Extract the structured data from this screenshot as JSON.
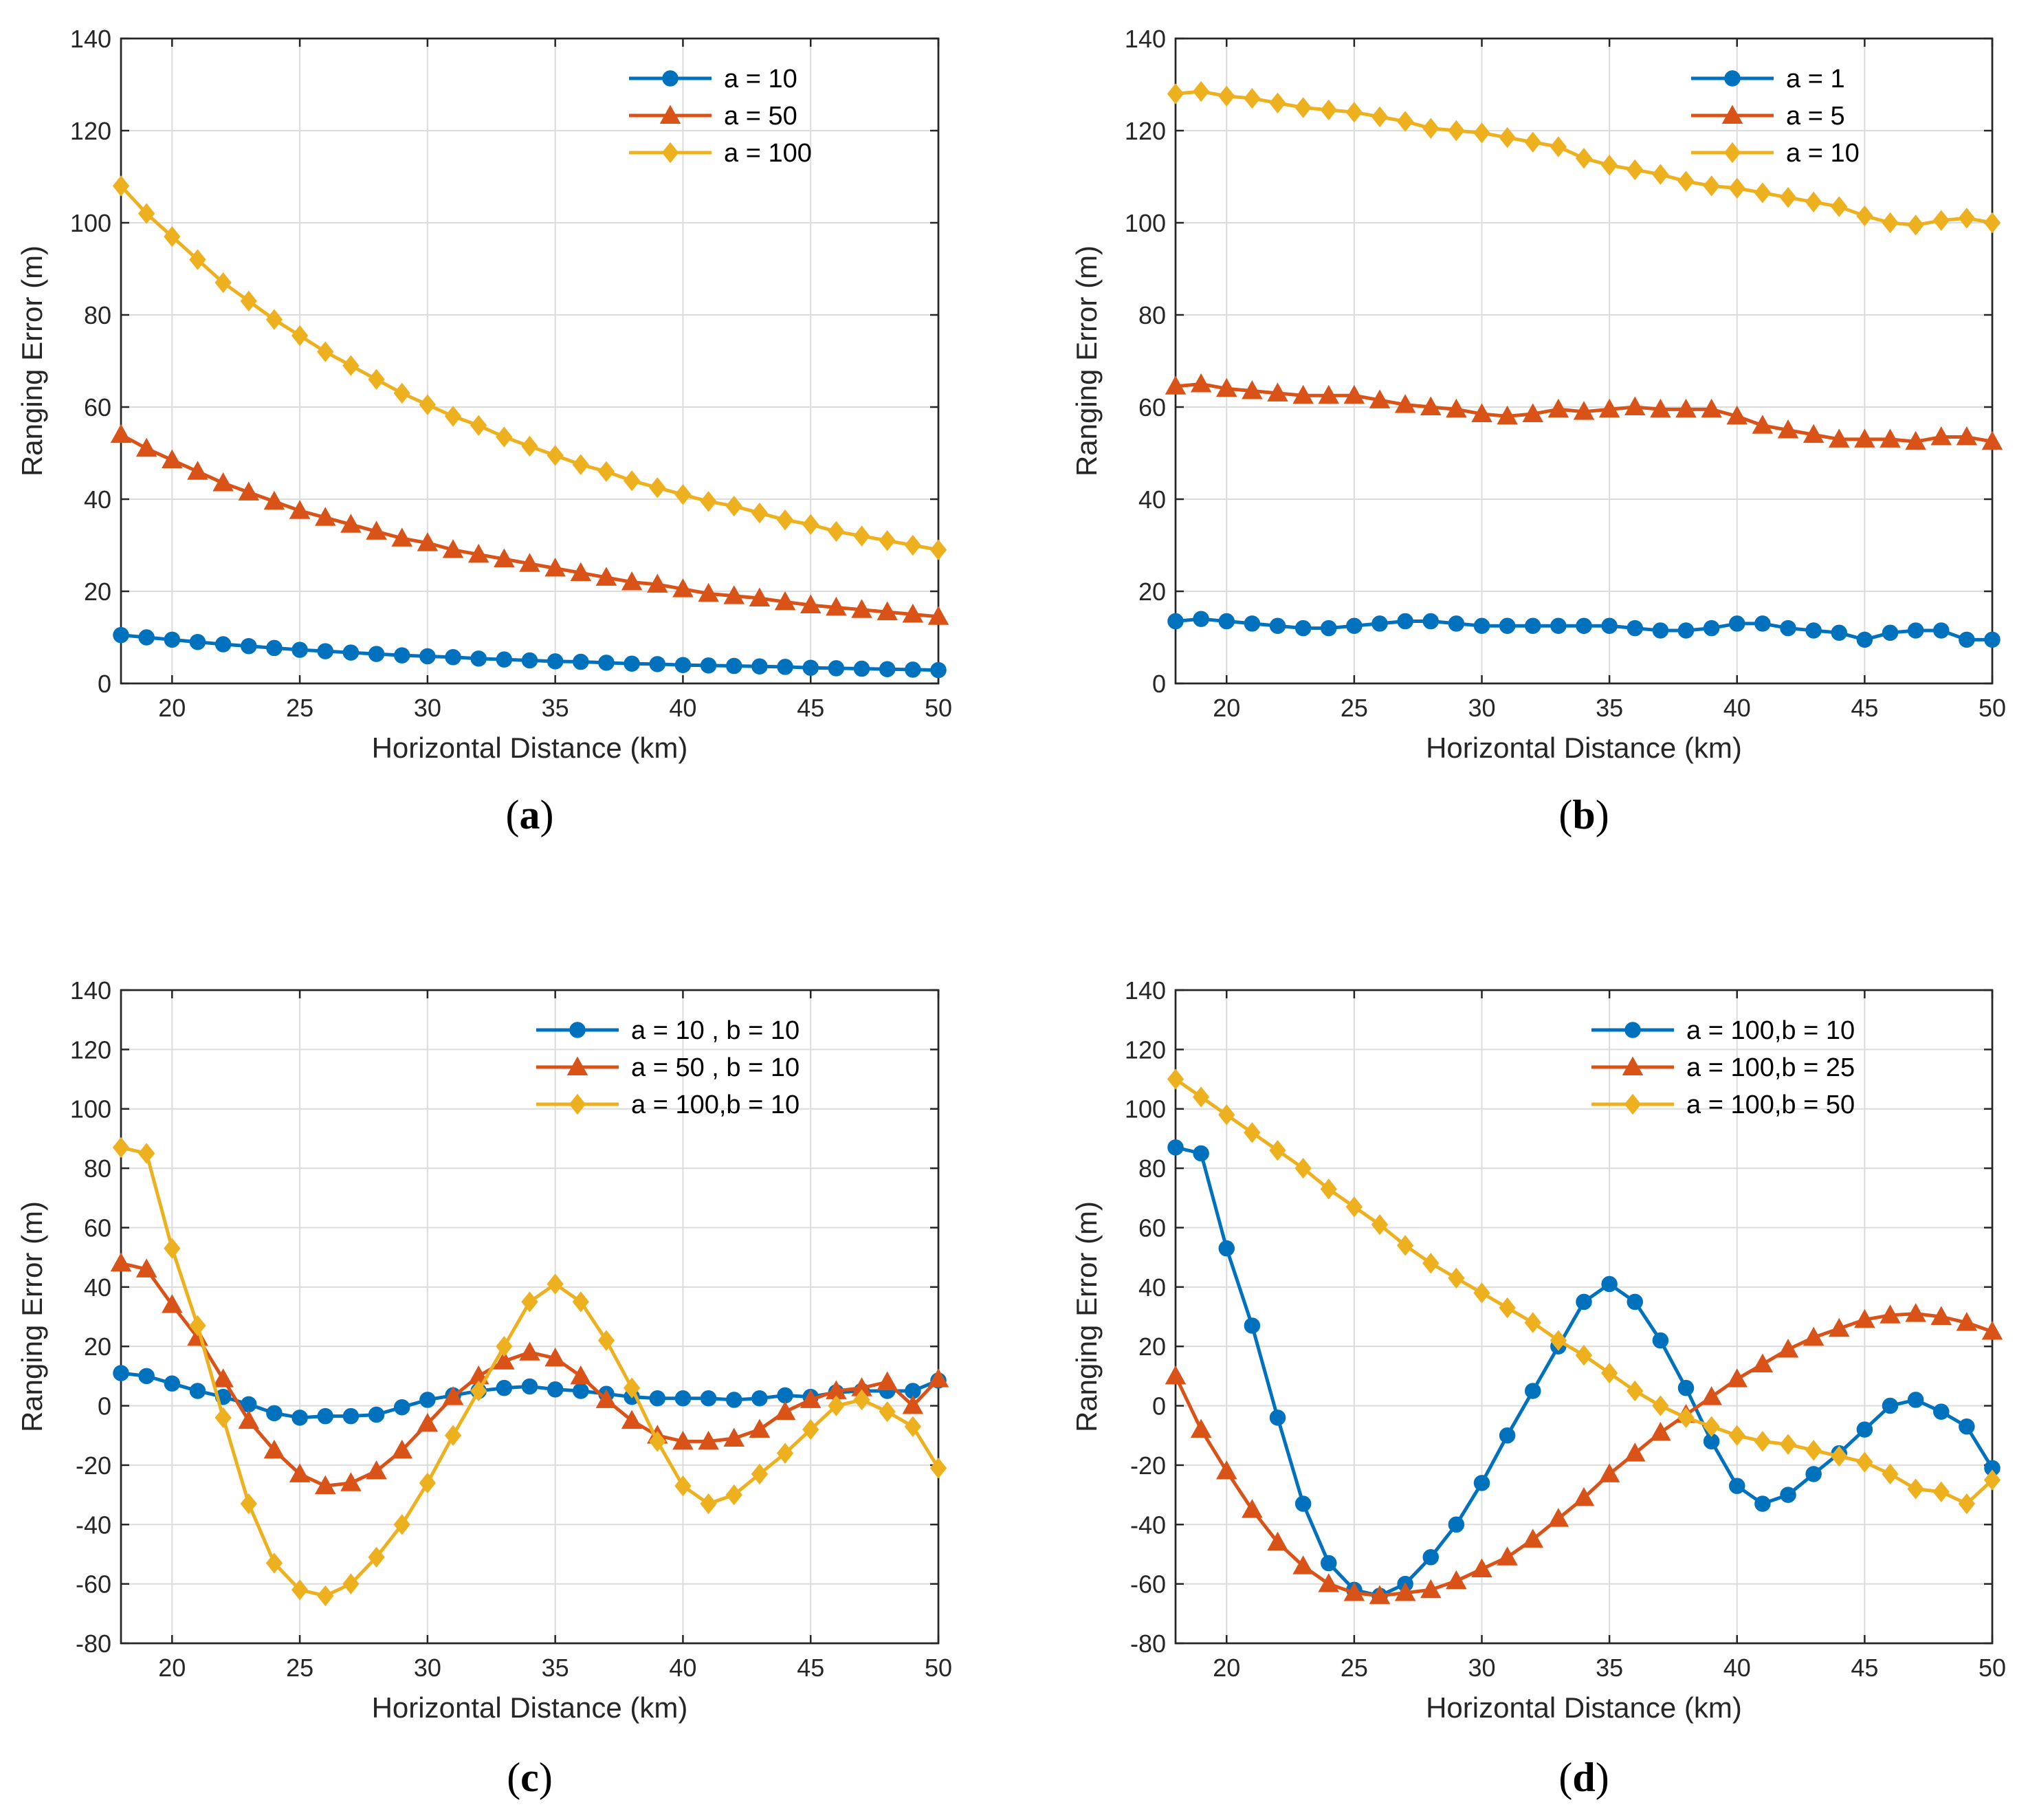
{
  "chart_data": [
    {
      "type": "line",
      "caption_letter": "a",
      "xlabel": "Horizontal Distance (km)",
      "ylabel": "Ranging Error (m)",
      "xlim": [
        18,
        50
      ],
      "ylim": [
        0,
        140
      ],
      "xticks": [
        20,
        25,
        30,
        35,
        40,
        45,
        50
      ],
      "yticks": [
        0,
        20,
        40,
        60,
        80,
        100,
        120,
        140
      ],
      "grid": true,
      "legend_position": "top-right",
      "x": [
        18,
        19,
        20,
        21,
        22,
        23,
        24,
        25,
        26,
        27,
        28,
        29,
        30,
        31,
        32,
        33,
        34,
        35,
        36,
        37,
        38,
        39,
        40,
        41,
        42,
        43,
        44,
        45,
        46,
        47,
        48,
        49,
        50
      ],
      "series": [
        {
          "name": "a = 10",
          "color": "#0072BD",
          "marker": "circle",
          "values": [
            10.5,
            10,
            9.5,
            9,
            8.5,
            8.1,
            7.7,
            7.3,
            7,
            6.7,
            6.4,
            6.1,
            5.9,
            5.7,
            5.4,
            5.2,
            5,
            4.8,
            4.7,
            4.5,
            4.3,
            4.2,
            4,
            3.9,
            3.8,
            3.7,
            3.6,
            3.4,
            3.3,
            3.2,
            3.1,
            3,
            2.9
          ]
        },
        {
          "name": "a = 50",
          "color": "#D95319",
          "marker": "triangle",
          "values": [
            54,
            51,
            48.5,
            46,
            43.5,
            41.5,
            39.5,
            37.5,
            36,
            34.5,
            33,
            31.5,
            30.5,
            29,
            28,
            27,
            26,
            25,
            24,
            23,
            22,
            21.5,
            20.5,
            19.5,
            19,
            18.5,
            17.7,
            17,
            16.5,
            16,
            15.5,
            15,
            14.5
          ]
        },
        {
          "name": "a = 100",
          "color": "#EDB120",
          "marker": "diamond",
          "values": [
            108,
            102,
            97,
            92,
            87,
            83,
            79,
            75.5,
            72,
            69,
            66,
            63,
            60.5,
            58,
            56,
            53.5,
            51.5,
            49.5,
            47.5,
            46,
            44,
            42.5,
            41,
            39.5,
            38.5,
            37,
            35.5,
            34.5,
            33,
            32,
            31,
            30,
            29
          ]
        }
      ]
    },
    {
      "type": "line",
      "caption_letter": "b",
      "xlabel": "Horizontal Distance (km)",
      "ylabel": "Ranging Error (m)",
      "xlim": [
        18,
        50
      ],
      "ylim": [
        0,
        140
      ],
      "xticks": [
        20,
        25,
        30,
        35,
        40,
        45,
        50
      ],
      "yticks": [
        0,
        20,
        40,
        60,
        80,
        100,
        120,
        140
      ],
      "grid": true,
      "legend_position": "top-right",
      "x": [
        18,
        19,
        20,
        21,
        22,
        23,
        24,
        25,
        26,
        27,
        28,
        29,
        30,
        31,
        32,
        33,
        34,
        35,
        36,
        37,
        38,
        39,
        40,
        41,
        42,
        43,
        44,
        45,
        46,
        47,
        48,
        49,
        50
      ],
      "series": [
        {
          "name": "a = 1",
          "color": "#0072BD",
          "marker": "circle",
          "values": [
            13.5,
            14,
            13.5,
            13,
            12.5,
            12,
            12,
            12.5,
            13,
            13.5,
            13.5,
            13,
            12.5,
            12.5,
            12.5,
            12.5,
            12.5,
            12.5,
            12,
            11.5,
            11.5,
            12,
            13,
            13,
            12,
            11.5,
            11,
            9.5,
            11,
            11.5,
            11.5,
            9.5,
            9.5
          ]
        },
        {
          "name": "a = 5",
          "color": "#D95319",
          "marker": "triangle",
          "values": [
            64.5,
            65,
            64,
            63.5,
            63,
            62.5,
            62.5,
            62.5,
            61.5,
            60.5,
            60,
            59.5,
            58.5,
            58,
            58.5,
            59.5,
            59,
            59.5,
            60,
            59.5,
            59.5,
            59.5,
            58,
            56,
            55,
            54,
            53,
            53,
            53,
            52.5,
            53.5,
            53.5,
            52.5
          ]
        },
        {
          "name": "a = 10",
          "color": "#EDB120",
          "marker": "diamond",
          "values": [
            128,
            128.5,
            127.5,
            127,
            126,
            125,
            124.5,
            124,
            123,
            122,
            120.5,
            120,
            119.5,
            118.5,
            117.5,
            116.5,
            114,
            112.5,
            111.5,
            110.5,
            109,
            108,
            107.5,
            106.5,
            105.5,
            104.5,
            103.5,
            101.5,
            100,
            99.5,
            100.5,
            101,
            100
          ]
        }
      ]
    },
    {
      "type": "line",
      "caption_letter": "c",
      "xlabel": "Horizontal Distance (km)",
      "ylabel": "Ranging Error (m)",
      "xlim": [
        18,
        50
      ],
      "ylim": [
        -80,
        140
      ],
      "xticks": [
        20,
        25,
        30,
        35,
        40,
        45,
        50
      ],
      "yticks": [
        -80,
        -60,
        -40,
        -20,
        0,
        20,
        40,
        60,
        80,
        100,
        120,
        140
      ],
      "grid": true,
      "legend_position": "top-right",
      "x": [
        18,
        19,
        20,
        21,
        22,
        23,
        24,
        25,
        26,
        27,
        28,
        29,
        30,
        31,
        32,
        33,
        34,
        35,
        36,
        37,
        38,
        39,
        40,
        41,
        42,
        43,
        44,
        45,
        46,
        47,
        48,
        49,
        50
      ],
      "series": [
        {
          "name": "a = 10 , b = 10",
          "color": "#0072BD",
          "marker": "circle",
          "values": [
            11,
            10,
            7.5,
            5,
            3,
            0.5,
            -2.5,
            -4,
            -3.5,
            -3.5,
            -3,
            -0.5,
            2,
            3.5,
            5,
            6,
            6.5,
            5.5,
            5,
            4,
            3,
            2.5,
            2.5,
            2.5,
            2,
            2.5,
            3.5,
            3,
            4.5,
            5,
            5,
            5,
            8.5
          ]
        },
        {
          "name": "a = 50 , b = 10",
          "color": "#D95319",
          "marker": "triangle",
          "values": [
            48,
            46,
            34,
            23,
            9,
            -5,
            -15,
            -23,
            -27,
            -26,
            -22,
            -15,
            -6,
            3,
            10,
            15,
            18,
            16,
            10,
            2,
            -5,
            -10,
            -12,
            -12,
            -11,
            -8,
            -2,
            2,
            5,
            6,
            8,
            0,
            9
          ]
        },
        {
          "name": "a = 100,b = 10",
          "color": "#EDB120",
          "marker": "diamond",
          "values": [
            87,
            85,
            53,
            27,
            -4,
            -33,
            -53,
            -62,
            -64,
            -60,
            -51,
            -40,
            -26,
            -10,
            5,
            20,
            35,
            41,
            35,
            22,
            6,
            -12,
            -27,
            -33,
            -30,
            -23,
            -16,
            -8,
            0,
            2,
            -2,
            -7,
            -21
          ]
        }
      ]
    },
    {
      "type": "line",
      "caption_letter": "d",
      "xlabel": "Horizontal Distance (km)",
      "ylabel": "Ranging Error (m)",
      "xlim": [
        18,
        50
      ],
      "ylim": [
        -80,
        140
      ],
      "xticks": [
        20,
        25,
        30,
        35,
        40,
        45,
        50
      ],
      "yticks": [
        -80,
        -60,
        -40,
        -20,
        0,
        20,
        40,
        60,
        80,
        100,
        120,
        140
      ],
      "grid": true,
      "legend_position": "top-right",
      "x": [
        18,
        19,
        20,
        21,
        22,
        23,
        24,
        25,
        26,
        27,
        28,
        29,
        30,
        31,
        32,
        33,
        34,
        35,
        36,
        37,
        38,
        39,
        40,
        41,
        42,
        43,
        44,
        45,
        46,
        47,
        48,
        49,
        50
      ],
      "series": [
        {
          "name": "a = 100,b = 10",
          "color": "#0072BD",
          "marker": "circle",
          "values": [
            87,
            85,
            53,
            27,
            -4,
            -33,
            -53,
            -62,
            -64,
            -60,
            -51,
            -40,
            -26,
            -10,
            5,
            20,
            35,
            41,
            35,
            22,
            6,
            -12,
            -27,
            -33,
            -30,
            -23,
            -16,
            -8,
            0,
            2,
            -2,
            -7,
            -21
          ]
        },
        {
          "name": "a = 100,b = 25",
          "color": "#D95319",
          "marker": "triangle",
          "values": [
            10,
            -8,
            -22,
            -35,
            -46,
            -54,
            -60,
            -63,
            -64,
            -63,
            -62,
            -59,
            -55,
            -51,
            -45,
            -38,
            -31,
            -23,
            -16,
            -9,
            -3,
            3,
            9,
            14,
            19,
            23,
            26,
            29,
            30.5,
            31,
            30,
            28,
            25
          ]
        },
        {
          "name": "a = 100,b = 50",
          "color": "#EDB120",
          "marker": "diamond",
          "values": [
            110,
            104,
            98,
            92,
            86,
            80,
            73,
            67,
            61,
            54,
            48,
            43,
            38,
            33,
            28,
            22,
            17,
            11,
            5,
            0,
            -4,
            -7,
            -10,
            -12,
            -13,
            -15,
            -17,
            -19,
            -23,
            -28,
            -29,
            -33,
            -25
          ]
        }
      ]
    }
  ]
}
